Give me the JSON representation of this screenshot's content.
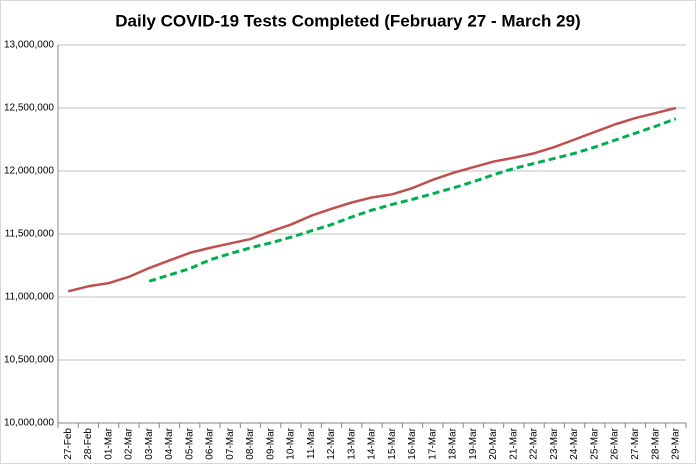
{
  "chart_data": {
    "type": "line",
    "title": "Daily COVID-19 Tests Completed (February 27 - March 29)",
    "categories": [
      "27-Feb",
      "28-Feb",
      "01-Mar",
      "02-Mar",
      "03-Mar",
      "04-Mar",
      "05-Mar",
      "06-Mar",
      "07-Mar",
      "08-Mar",
      "09-Mar",
      "10-Mar",
      "11-Mar",
      "12-Mar",
      "13-Mar",
      "14-Mar",
      "15-Mar",
      "16-Mar",
      "17-Mar",
      "18-Mar",
      "19-Mar",
      "20-Mar",
      "21-Mar",
      "22-Mar",
      "23-Mar",
      "24-Mar",
      "25-Mar",
      "26-Mar",
      "27-Mar",
      "28-Mar",
      "29-Mar"
    ],
    "series": [
      {
        "color": "#c0504d",
        "dashed": false,
        "values": [
          11045000,
          11085000,
          11110000,
          11160000,
          11230000,
          11290000,
          11350000,
          11390000,
          11425000,
          11460000,
          11520000,
          11575000,
          11645000,
          11700000,
          11750000,
          11790000,
          11815000,
          11865000,
          11930000,
          11985000,
          12030000,
          12075000,
          12105000,
          12140000,
          12190000,
          12250000,
          12310000,
          12370000,
          12420000,
          12460000,
          12500000
        ]
      },
      {
        "color": "#00b050",
        "dashed": true,
        "values": [
          null,
          null,
          null,
          null,
          11125000,
          11175000,
          11225000,
          11295000,
          11345000,
          11390000,
          11430000,
          11475000,
          11525000,
          11575000,
          11635000,
          11690000,
          11735000,
          11775000,
          11820000,
          11865000,
          11915000,
          11970000,
          12020000,
          12060000,
          12100000,
          12140000,
          12190000,
          12245000,
          12300000,
          12355000,
          12415000
        ]
      }
    ],
    "ylim": [
      10000000,
      13000000
    ],
    "yticks": [
      {
        "value": 10000000,
        "label": "10,000,000"
      },
      {
        "value": 10500000,
        "label": "10,500,000"
      },
      {
        "value": 11000000,
        "label": "11,000,000"
      },
      {
        "value": 11500000,
        "label": "11,500,000"
      },
      {
        "value": 12000000,
        "label": "12,000,000"
      },
      {
        "value": 12500000,
        "label": "12,500,000"
      },
      {
        "value": 13000000,
        "label": "13,000,000"
      }
    ],
    "grid": true
  }
}
